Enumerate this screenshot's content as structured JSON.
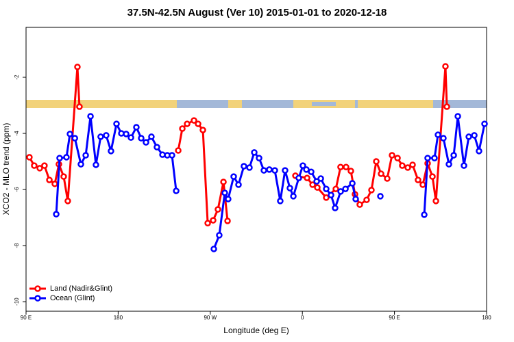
{
  "chart_data": {
    "type": "line",
    "title": "37.5N-42.5N August (Ver 10)   2015-01-01 to 2020-12-18",
    "x_label": "Longitude (deg E)",
    "y_label": "XCO2 - MLO trend (ppm)",
    "xlim": [
      90,
      540
    ],
    "xticks": [
      {
        "value": 90,
        "label": "90 E"
      },
      180,
      {
        "value": 270,
        "label": "90 W"
      },
      {
        "value": 360,
        "label": "0"
      },
      {
        "value": 450,
        "label": "90 E"
      },
      {
        "value": 540,
        "label": "180"
      }
    ],
    "ylim": [
      -10.34,
      -0.22
    ],
    "yticks": [
      -10,
      -8,
      -6,
      -4,
      -2
    ],
    "legend": "bottom-left",
    "series": [
      {
        "name": "Land (Nadir&Glint)",
        "color": "#ff0000",
        "x": [
          93.3,
          98,
          103.4,
          108,
          112.8,
          118.1,
          122.1,
          126.8,
          130.8,
          140.2,
          142.2,
          null,
          238.7,
          242.7,
          247.4,
          254.1,
          258.1,
          262.8,
          267.5,
          272.8,
          277.5,
          282.9,
          286.9,
          null,
          353.2,
          364.6,
          370,
          374.6,
          383.3,
          392.7,
          397.3,
          402.7,
          407.4,
          411.4,
          416.1,
          422.8,
          427.5,
          432.2,
          436.9,
          442.9,
          447.6,
          453,
          457.6,
          463,
          467.7,
          473,
          477.7,
          482.4,
          487.1,
          490.5,
          499.8,
          501.2
        ],
        "values": [
          -4.85,
          -5.15,
          -5.24,
          -5.15,
          -5.66,
          -5.8,
          -5.1,
          -5.54,
          -6.41,
          -1.63,
          -3.05,
          null,
          -4.61,
          -3.83,
          -3.66,
          -3.54,
          -3.66,
          -3.88,
          -7.2,
          -7.1,
          -6.71,
          -5.73,
          -7.12,
          null,
          -5.51,
          -5.59,
          -5.83,
          -5.93,
          -6.29,
          -5.98,
          -5.2,
          -5.2,
          -5.34,
          -6.17,
          -6.54,
          -6.37,
          -6.02,
          -5.0,
          -5.44,
          -5.61,
          -4.78,
          -4.88,
          -5.15,
          -5.22,
          -5.12,
          -5.66,
          -5.83,
          -5.07,
          -5.54,
          -6.41,
          -1.61,
          -3.05
        ]
      },
      {
        "name": "Ocean (Glint)",
        "color": "#0000ff",
        "x": [
          119.5,
          122.8,
          129.5,
          132.9,
          137.7,
          143.6,
          148.3,
          153,
          158.3,
          162.9,
          168.3,
          173,
          178.4,
          183.1,
          187.8,
          192.5,
          197.8,
          202.5,
          207.2,
          212.5,
          217.9,
          223.3,
          228,
          232.6,
          236.7,
          null,
          273.5,
          278.8,
          284.2,
          287.5,
          292.9,
          297.6,
          302.9,
          308.3,
          313,
          317.7,
          322.4,
          327.7,
          333.1,
          338.4,
          343.1,
          347.8,
          351.2,
          356.5,
          360.5,
          363.9,
          368.6,
          374,
          378,
          383.3,
          388,
          392,
          397.4,
          402.1,
          408.8,
          412.1,
          null,
          436.2,
          null,
          479.1,
          482.4,
          489.1,
          492.5,
          497.8,
          503.2,
          507.9,
          511.9,
          517.9,
          522.6,
          528,
          532.6,
          538
        ],
        "values": [
          -6.88,
          -4.88,
          -4.85,
          -4.02,
          -4.17,
          -5.1,
          -4.78,
          -3.39,
          -5.12,
          -4.12,
          -4.07,
          -4.63,
          -3.66,
          -4.0,
          -4.02,
          -4.15,
          -3.78,
          -4.17,
          -4.32,
          -4.12,
          -4.49,
          -4.76,
          -4.78,
          -4.78,
          -6.05,
          null,
          -8.12,
          -7.63,
          -6.12,
          -6.34,
          -5.54,
          -5.83,
          -5.17,
          -5.22,
          -4.68,
          -4.88,
          -5.32,
          -5.29,
          -5.32,
          -6.41,
          -5.32,
          -5.95,
          -6.24,
          -5.59,
          -5.15,
          -5.29,
          -5.37,
          -5.71,
          -5.61,
          -5.98,
          -6.2,
          -6.66,
          -6.07,
          -5.98,
          -5.78,
          -6.34,
          null,
          -6.24,
          null,
          -6.9,
          -4.88,
          -4.88,
          -4.05,
          -4.17,
          -5.1,
          -4.78,
          -3.39,
          -5.15,
          -4.12,
          -4.07,
          -4.63,
          -3.66
        ]
      }
    ]
  }
}
